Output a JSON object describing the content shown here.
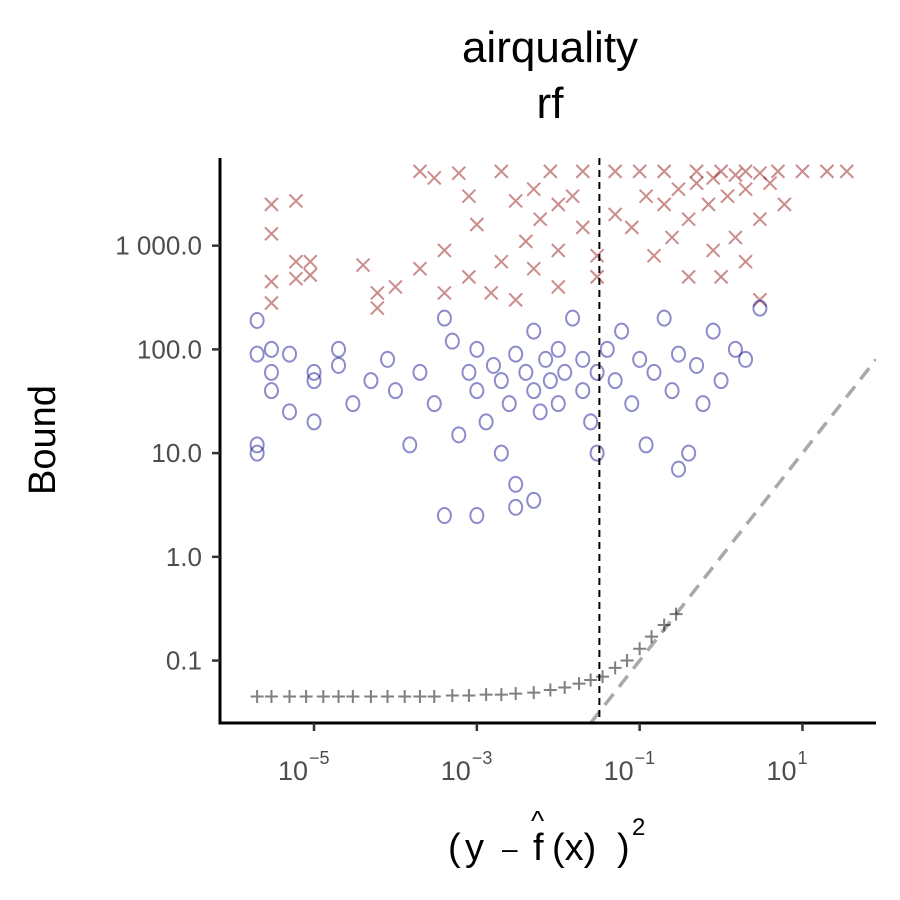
{
  "chart_data": {
    "type": "scatter",
    "title_line1": "airquality",
    "title_line2": "rf",
    "ylabel": "Bound",
    "xlabel_parts": {
      "y": "y",
      "minus": "–",
      "fhat": "f",
      "hat": "^",
      "arg": "(x)",
      "open": "(",
      "close": ")",
      "power": "2"
    },
    "x_scale": "log10",
    "y_scale": "log10",
    "xlim": [
      7e-07,
      80
    ],
    "ylim": [
      0.025,
      7000
    ],
    "x_ticks": [
      {
        "value": 1e-05,
        "base": "10",
        "exp": "−5"
      },
      {
        "value": 0.001,
        "base": "10",
        "exp": "−3"
      },
      {
        "value": 0.1,
        "base": "10",
        "exp": "−1"
      },
      {
        "value": 10,
        "base": "10",
        "exp": "1"
      }
    ],
    "y_ticks": [
      {
        "value": 0.1,
        "label": "0.1"
      },
      {
        "value": 1,
        "label": "1.0"
      },
      {
        "value": 10,
        "label": "10.0"
      },
      {
        "value": 100,
        "label": "100.0"
      },
      {
        "value": 1000,
        "label": "1 000.0"
      }
    ],
    "vline_x": 0.032,
    "reference_line": "y = x",
    "series": [
      {
        "marker": "x",
        "color": "#8b0000",
        "opacity": 0.45,
        "points": [
          [
            3e-06,
            2500
          ],
          [
            6e-06,
            2700
          ],
          [
            3e-06,
            450
          ],
          [
            3e-06,
            1300
          ],
          [
            6e-06,
            480
          ],
          [
            6e-06,
            700
          ],
          [
            9e-06,
            520
          ],
          [
            9e-06,
            700
          ],
          [
            3e-06,
            280
          ],
          [
            4e-05,
            650
          ],
          [
            6e-05,
            350
          ],
          [
            6e-05,
            250
          ],
          [
            0.0002,
            5200
          ],
          [
            0.0003,
            4500
          ],
          [
            0.0006,
            5000
          ],
          [
            0.0008,
            3000
          ],
          [
            0.0001,
            400
          ],
          [
            0.0002,
            600
          ],
          [
            0.0004,
            900
          ],
          [
            0.001,
            1600
          ],
          [
            0.002,
            5200
          ],
          [
            0.003,
            2700
          ],
          [
            0.005,
            3500
          ],
          [
            0.008,
            5200
          ],
          [
            0.004,
            1100
          ],
          [
            0.006,
            1800
          ],
          [
            0.01,
            900
          ],
          [
            0.01,
            2500
          ],
          [
            0.02,
            5200
          ],
          [
            0.015,
            3000
          ],
          [
            0.02,
            1500
          ],
          [
            0.03,
            800
          ],
          [
            0.005,
            600
          ],
          [
            0.002,
            700
          ],
          [
            0.0008,
            500
          ],
          [
            0.0004,
            350
          ],
          [
            0.0015,
            350
          ],
          [
            0.003,
            300
          ],
          [
            0.01,
            400
          ],
          [
            0.03,
            500
          ],
          [
            0.05,
            5200
          ],
          [
            0.1,
            5200
          ],
          [
            0.2,
            5200
          ],
          [
            0.5,
            5200
          ],
          [
            1,
            5200
          ],
          [
            2,
            5200
          ],
          [
            5,
            5200
          ],
          [
            10,
            5200
          ],
          [
            20,
            5200
          ],
          [
            35,
            5200
          ],
          [
            0.05,
            2000
          ],
          [
            0.08,
            1500
          ],
          [
            0.12,
            3000
          ],
          [
            0.2,
            2500
          ],
          [
            0.3,
            3500
          ],
          [
            0.5,
            4000
          ],
          [
            0.8,
            4500
          ],
          [
            1.5,
            4800
          ],
          [
            3,
            5000
          ],
          [
            0.15,
            800
          ],
          [
            0.25,
            1200
          ],
          [
            0.4,
            1800
          ],
          [
            0.7,
            2500
          ],
          [
            1.2,
            3000
          ],
          [
            2,
            3500
          ],
          [
            4,
            4000
          ],
          [
            0.4,
            500
          ],
          [
            0.8,
            900
          ],
          [
            1.5,
            1200
          ],
          [
            3,
            1800
          ],
          [
            6,
            2500
          ],
          [
            1,
            500
          ],
          [
            2,
            700
          ],
          [
            3,
            300
          ]
        ]
      },
      {
        "marker": "o",
        "color": "#00008b",
        "opacity": 0.45,
        "points": [
          [
            2e-06,
            190
          ],
          [
            2e-06,
            90
          ],
          [
            2e-06,
            12
          ],
          [
            2e-06,
            10
          ],
          [
            3e-06,
            60
          ],
          [
            3e-06,
            40
          ],
          [
            3e-06,
            100
          ],
          [
            5e-06,
            90
          ],
          [
            5e-06,
            25
          ],
          [
            1e-05,
            60
          ],
          [
            1e-05,
            20
          ],
          [
            1e-05,
            50
          ],
          [
            2e-05,
            100
          ],
          [
            2e-05,
            70
          ],
          [
            3e-05,
            30
          ],
          [
            5e-05,
            50
          ],
          [
            8e-05,
            80
          ],
          [
            0.0001,
            40
          ],
          [
            0.00015,
            12
          ],
          [
            0.0002,
            60
          ],
          [
            0.0003,
            30
          ],
          [
            0.0004,
            200
          ],
          [
            0.0005,
            120
          ],
          [
            0.0006,
            15
          ],
          [
            0.0008,
            60
          ],
          [
            0.001,
            40
          ],
          [
            0.001,
            100
          ],
          [
            0.0013,
            20
          ],
          [
            0.0016,
            70
          ],
          [
            0.002,
            50
          ],
          [
            0.002,
            10
          ],
          [
            0.0025,
            30
          ],
          [
            0.003,
            90
          ],
          [
            0.003,
            5
          ],
          [
            0.004,
            60
          ],
          [
            0.005,
            40
          ],
          [
            0.005,
            150
          ],
          [
            0.006,
            25
          ],
          [
            0.007,
            80
          ],
          [
            0.008,
            50
          ],
          [
            0.01,
            100
          ],
          [
            0.01,
            30
          ],
          [
            0.012,
            60
          ],
          [
            0.015,
            200
          ],
          [
            0.02,
            40
          ],
          [
            0.02,
            80
          ],
          [
            0.025,
            20
          ],
          [
            0.03,
            60
          ],
          [
            0.03,
            10
          ],
          [
            0.04,
            100
          ],
          [
            0.05,
            50
          ],
          [
            0.06,
            150
          ],
          [
            0.08,
            30
          ],
          [
            0.1,
            80
          ],
          [
            0.12,
            12
          ],
          [
            0.15,
            60
          ],
          [
            0.2,
            200
          ],
          [
            0.25,
            40
          ],
          [
            0.3,
            90
          ],
          [
            0.4,
            10
          ],
          [
            0.5,
            70
          ],
          [
            0.6,
            30
          ],
          [
            0.8,
            150
          ],
          [
            1,
            50
          ],
          [
            1.5,
            100
          ],
          [
            2,
            80
          ],
          [
            3,
            250
          ],
          [
            0.001,
            2.5
          ],
          [
            0.003,
            3
          ],
          [
            0.005,
            3.5
          ],
          [
            0.0004,
            2.5
          ],
          [
            0.3,
            7
          ]
        ]
      },
      {
        "marker": "+",
        "color": "#000000",
        "opacity": 0.5,
        "points": [
          [
            2e-06,
            0.045
          ],
          [
            3e-06,
            0.045
          ],
          [
            5e-06,
            0.045
          ],
          [
            8e-06,
            0.045
          ],
          [
            1.3e-05,
            0.045
          ],
          [
            2e-05,
            0.045
          ],
          [
            3e-05,
            0.045
          ],
          [
            5e-05,
            0.045
          ],
          [
            8e-05,
            0.045
          ],
          [
            0.00013,
            0.045
          ],
          [
            0.0002,
            0.045
          ],
          [
            0.0003,
            0.045
          ],
          [
            0.0005,
            0.046
          ],
          [
            0.0008,
            0.046
          ],
          [
            0.0013,
            0.047
          ],
          [
            0.002,
            0.047
          ],
          [
            0.003,
            0.048
          ],
          [
            0.005,
            0.049
          ],
          [
            0.008,
            0.052
          ],
          [
            0.012,
            0.055
          ],
          [
            0.018,
            0.06
          ],
          [
            0.025,
            0.065
          ],
          [
            0.035,
            0.07
          ],
          [
            0.05,
            0.085
          ],
          [
            0.07,
            0.1
          ],
          [
            0.1,
            0.13
          ],
          [
            0.14,
            0.17
          ],
          [
            0.2,
            0.22
          ],
          [
            0.28,
            0.28
          ]
        ]
      }
    ]
  }
}
